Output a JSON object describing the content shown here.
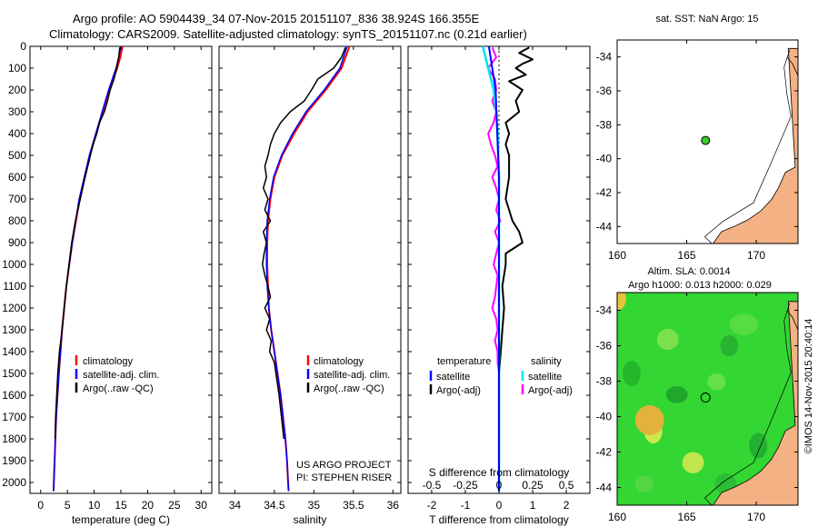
{
  "header": {
    "line1": "Argo profile: AO 5904439_34 07-Nov-2015 20151107_836 38.924S 166.355E",
    "line2": "Climatology: CARS2009. Satellite-adjusted climatology: synTS_20151107.nc (0.21d earlier)"
  },
  "colors": {
    "clim": "#ff0000",
    "sat": "#0000ff",
    "argo": "#000000",
    "cyan": "#00e5ee",
    "magenta": "#ff00ff",
    "land": "#f4b183",
    "point": "#3ccc2a"
  },
  "chart_data": [
    {
      "type": "line",
      "id": "temperature",
      "xlabel": "temperature (deg C)",
      "ylabel": "",
      "xlim": [
        -2,
        32
      ],
      "ylim": [
        2050,
        0
      ],
      "xticks": [
        0,
        5,
        10,
        15,
        20,
        25,
        30
      ],
      "yticks": [
        0,
        100,
        200,
        300,
        400,
        500,
        600,
        700,
        800,
        900,
        1000,
        1100,
        1200,
        1300,
        1400,
        1500,
        1600,
        1700,
        1800,
        1900,
        2000
      ],
      "legend": [
        "climatology",
        "satellite-adj. clim.",
        "Argo(..raw -QC)"
      ],
      "series": [
        {
          "name": "climatology",
          "depth": [
            0,
            50,
            100,
            200,
            300,
            400,
            500,
            700,
            900,
            1100,
            1300,
            1500,
            1700,
            1900,
            2040
          ],
          "values": [
            15.3,
            14.9,
            14.3,
            12.8,
            11.6,
            10.4,
            9.2,
            7.3,
            5.9,
            4.8,
            4.0,
            3.4,
            2.9,
            2.6,
            2.4
          ]
        },
        {
          "name": "satellite-adj. clim.",
          "depth": [
            0,
            50,
            100,
            200,
            300,
            400,
            500,
            700,
            900,
            1100,
            1300,
            1500,
            1700,
            1900,
            2040
          ],
          "values": [
            15.0,
            14.6,
            14.1,
            12.7,
            11.5,
            10.3,
            9.1,
            7.2,
            5.9,
            4.8,
            4.0,
            3.4,
            2.9,
            2.6,
            2.4
          ]
        },
        {
          "name": "Argo(..raw -QC)",
          "depth": [
            5,
            50,
            100,
            150,
            200,
            250,
            300,
            350,
            400,
            450,
            500,
            600,
            700,
            800,
            900,
            1000,
            1100,
            1200,
            1300,
            1400,
            1500,
            1600,
            1700,
            1800
          ],
          "values": [
            14.8,
            14.6,
            14.2,
            13.7,
            13.0,
            12.5,
            11.9,
            11.0,
            10.5,
            9.8,
            9.3,
            8.3,
            7.4,
            6.5,
            5.8,
            5.3,
            4.8,
            4.4,
            4.0,
            3.5,
            3.2,
            3.0,
            2.8,
            2.7
          ]
        }
      ]
    },
    {
      "type": "line",
      "id": "salinity",
      "xlabel": "salinity",
      "ylabel": "",
      "xlim": [
        33.8,
        36.1
      ],
      "ylim": [
        2050,
        0
      ],
      "xticks": [
        34,
        34.5,
        35,
        35.5,
        36
      ],
      "legend": [
        "climatology",
        "satellite-adj. clim.",
        "Argo(..raw -QC)"
      ],
      "annotation": [
        "US ARGO PROJECT",
        "PI: STEPHEN RISER"
      ],
      "series": [
        {
          "name": "climatology",
          "depth": [
            0,
            100,
            200,
            300,
            400,
            500,
            600,
            700,
            800,
            900,
            1000,
            1100,
            1200,
            1300,
            1400,
            1500,
            1600,
            1700,
            1800,
            1900,
            2040
          ],
          "values": [
            35.45,
            35.35,
            35.15,
            34.92,
            34.75,
            34.6,
            34.5,
            34.45,
            34.42,
            34.41,
            34.41,
            34.42,
            34.43,
            34.46,
            34.5,
            34.54,
            34.58,
            34.61,
            34.64,
            34.66,
            34.68
          ]
        },
        {
          "name": "satellite-adj. clim.",
          "depth": [
            0,
            100,
            200,
            300,
            400,
            500,
            600,
            700,
            800,
            900,
            1000,
            1100,
            1200,
            1300,
            1400,
            1500,
            1600,
            1700,
            1800,
            1900,
            2040
          ],
          "values": [
            35.42,
            35.33,
            35.13,
            34.9,
            34.73,
            34.59,
            34.49,
            34.44,
            34.41,
            34.4,
            34.4,
            34.41,
            34.43,
            34.46,
            34.5,
            34.54,
            34.58,
            34.61,
            34.64,
            34.66,
            34.68
          ]
        },
        {
          "name": "Argo(..raw -QC)",
          "depth": [
            5,
            50,
            100,
            150,
            200,
            250,
            300,
            350,
            400,
            450,
            500,
            550,
            600,
            650,
            700,
            750,
            800,
            850,
            900,
            950,
            1000,
            1050,
            1100,
            1150,
            1200,
            1250,
            1300,
            1350,
            1400,
            1450,
            1500,
            1600,
            1700,
            1800
          ],
          "values": [
            35.4,
            35.35,
            35.25,
            35.05,
            34.97,
            34.88,
            34.7,
            34.58,
            34.5,
            34.45,
            34.42,
            34.38,
            34.4,
            34.36,
            34.42,
            34.38,
            34.45,
            34.36,
            34.4,
            34.37,
            34.35,
            34.38,
            34.42,
            34.45,
            34.38,
            34.44,
            34.4,
            34.46,
            34.44,
            34.5,
            34.52,
            34.56,
            34.59,
            34.62
          ]
        }
      ]
    },
    {
      "type": "line",
      "id": "difference",
      "xlabel": "T difference from climatology",
      "xlabel_top": "S difference from climatology",
      "xlim_T": [
        -2.7,
        2.7
      ],
      "xticks_T": [
        -2,
        -1,
        0,
        1,
        2
      ],
      "xlim_S": [
        -0.675,
        0.675
      ],
      "xticks_S": [
        "-0.5",
        "-0.25",
        "0",
        "0.25",
        "0.5"
      ],
      "ylim": [
        2050,
        0
      ],
      "legend_titles": [
        "temperature",
        "salinity"
      ],
      "legend": [
        "satellite",
        "Argo(-adj)",
        "satellite",
        "Argo(-adj)"
      ],
      "series": [
        {
          "name": "T satellite",
          "depth": [
            0,
            200,
            400,
            600,
            800,
            1000,
            1200,
            1400,
            1600,
            1800,
            2040
          ],
          "values": [
            -0.3,
            -0.1,
            -0.05,
            0.0,
            0.0,
            0.0,
            0.0,
            0.0,
            0.0,
            0.0,
            0.0
          ]
        },
        {
          "name": "T Argo(-adj)",
          "depth": [
            5,
            30,
            60,
            80,
            100,
            130,
            160,
            200,
            250,
            300,
            350,
            400,
            450,
            500,
            600,
            700,
            800,
            850,
            900,
            950,
            1000,
            1100,
            1200,
            1300,
            1400,
            1500
          ],
          "values": [
            0.9,
            0.6,
            1.0,
            0.7,
            0.5,
            0.8,
            0.3,
            0.7,
            0.5,
            0.6,
            0.2,
            0.3,
            0.2,
            0.3,
            0.3,
            0.2,
            0.4,
            0.6,
            0.7,
            0.2,
            0.2,
            0.1,
            0.15,
            0.1,
            0.05,
            0.0
          ]
        },
        {
          "name": "S satellite",
          "depth": [
            0,
            100,
            200,
            300,
            400,
            600,
            800,
            1000,
            1200,
            1400,
            1600,
            1800,
            2040
          ],
          "values": [
            -0.12,
            -0.08,
            -0.04,
            -0.02,
            -0.01,
            0.0,
            0.0,
            0.0,
            0.0,
            0.0,
            0.0,
            0.0,
            0.0
          ]
        },
        {
          "name": "S Argo(-adj)",
          "depth": [
            5,
            50,
            100,
            150,
            200,
            250,
            300,
            350,
            400,
            450,
            500,
            550,
            600,
            650,
            700,
            750,
            800,
            850,
            900,
            950,
            1000,
            1050,
            1100,
            1150,
            1200,
            1250,
            1300,
            1350,
            1400,
            1450,
            1500
          ],
          "values": [
            -0.05,
            -0.02,
            -0.08,
            -0.03,
            -0.02,
            -0.05,
            -0.02,
            -0.04,
            -0.08,
            -0.06,
            -0.03,
            -0.01,
            -0.05,
            -0.02,
            0.0,
            -0.02,
            0.01,
            -0.03,
            0.0,
            -0.02,
            -0.04,
            -0.01,
            -0.02,
            -0.03,
            -0.05,
            -0.02,
            -0.01,
            -0.03,
            -0.01,
            -0.01,
            0.0
          ]
        }
      ]
    },
    {
      "type": "scatter",
      "id": "map-sst",
      "title": "sat. SST: NaN Argo: 15",
      "xlim": [
        160,
        173
      ],
      "ylim": [
        -45,
        -33
      ],
      "xticks": [
        160,
        165,
        170
      ],
      "yticks": [
        -34,
        -36,
        -38,
        -40,
        -42,
        -44
      ],
      "points": [
        {
          "lon": 166.355,
          "lat": -38.924
        }
      ]
    },
    {
      "type": "heatmap",
      "id": "map-sla",
      "title_line1": "Altim. SLA: 0.0014",
      "title_line2": "Argo h1000: 0.013 h2000: 0.029",
      "xlim": [
        160,
        173
      ],
      "ylim": [
        -45,
        -33
      ],
      "xticks": [
        160,
        165,
        170
      ],
      "yticks": [
        -34,
        -36,
        -38,
        -40,
        -42,
        -44
      ],
      "points": [
        {
          "lon": 166.355,
          "lat": -38.924
        }
      ]
    }
  ],
  "stamp": "©IMOS 14-Nov-2015 20:40:14"
}
